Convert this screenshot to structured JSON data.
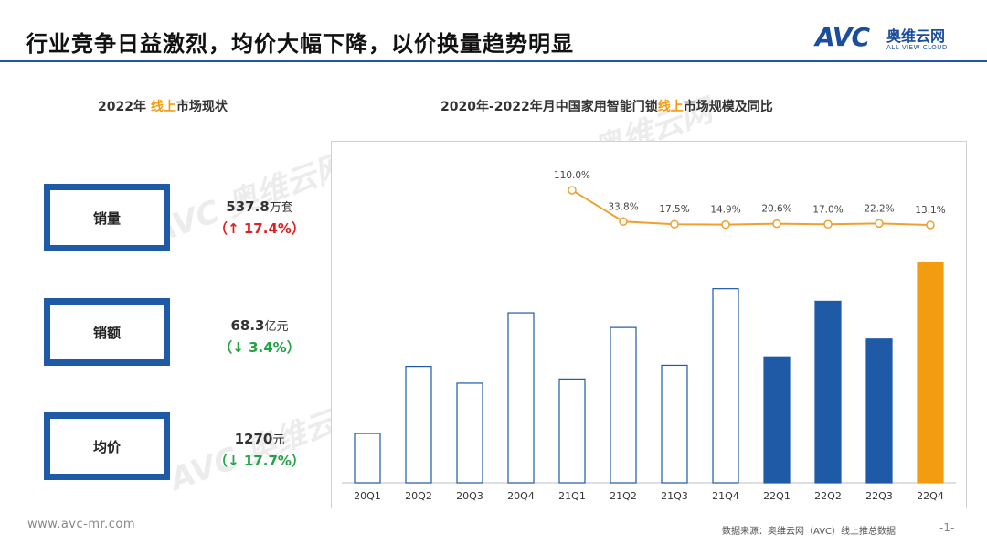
{
  "title": "行业竞争日益激烈，均价大幅下降，以价换量趋势明显",
  "logo": {
    "mark": "AVC",
    "cn": "奥维云网",
    "en": "ALL VIEW CLOUD"
  },
  "left_panel": {
    "title_prefix": "2022年 ",
    "title_highlight": "线上",
    "title_suffix": "市场现状",
    "metrics": [
      {
        "label": "销量",
        "value": "537.8",
        "unit": "万套",
        "change_open": "（",
        "change_arrow": "↑",
        "change_value": "17.4%",
        "change_close": "）",
        "direction": "up"
      },
      {
        "label": "销额",
        "value": "68.3",
        "unit": "亿元",
        "change_open": "（",
        "change_arrow": "↓",
        "change_value": "3.4%",
        "change_close": "）",
        "direction": "down"
      },
      {
        "label": "均价",
        "value": "1270",
        "unit": "元",
        "change_open": "（",
        "change_arrow": "↓",
        "change_value": "17.7%",
        "change_close": "）",
        "direction": "down"
      }
    ]
  },
  "chart_title": {
    "prefix": "2020年-2022年月中国家用智能门锁",
    "highlight": "线上",
    "suffix": "市场规模及同比"
  },
  "chart_data": {
    "type": "bar",
    "categories": [
      "20Q1",
      "20Q2",
      "20Q3",
      "20Q4",
      "21Q1",
      "21Q2",
      "21Q3",
      "21Q4",
      "22Q1",
      "22Q2",
      "22Q3",
      "22Q4"
    ],
    "series": [
      {
        "values": [
          47,
          111,
          95,
          162,
          99,
          148,
          112,
          185,
          120,
          173,
          137,
          210
        ]
      },
      {
        "values": [
          null,
          null,
          null,
          null,
          110.0,
          33.8,
          17.5,
          14.9,
          20.6,
          17.0,
          22.2,
          13.1
        ],
        "labels": [
          null,
          null,
          null,
          null,
          "110.0%",
          "33.8%",
          "17.5%",
          "14.9%",
          "20.6%",
          "17.0%",
          "22.2%",
          "13.1%"
        ]
      }
    ],
    "bar_styles": [
      "outline",
      "outline",
      "outline",
      "outline",
      "outline",
      "outline",
      "outline",
      "outline",
      "filled",
      "filled",
      "filled",
      "highlight"
    ],
    "colors": {
      "outline": "#1f5aa6",
      "filled": "#1f5aa6",
      "highlight": "#f39c12",
      "line": "#f0a030"
    },
    "ylim": [
      0,
      230
    ],
    "line_ylim": [
      0,
      130
    ],
    "grid": false
  },
  "footer": {
    "url": "www.avc-mr.com",
    "source": "数据来源：奥维云网（AVC）线上推总数据",
    "page": "-1-"
  }
}
